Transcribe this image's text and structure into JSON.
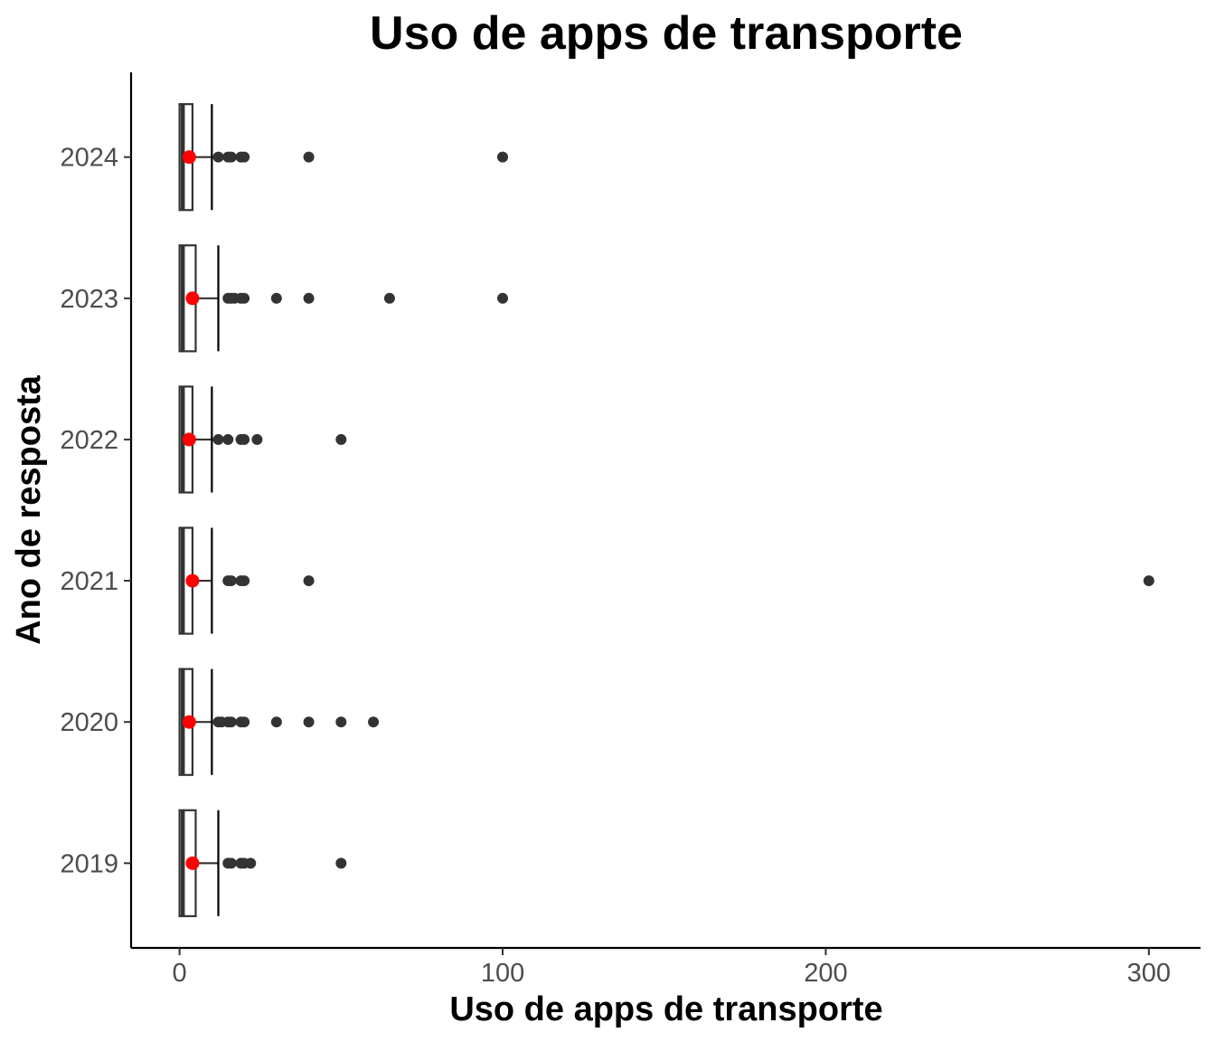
{
  "chart_data": {
    "type": "boxplot",
    "orientation": "horizontal",
    "title": "Uso de apps de transporte",
    "xlabel": "Uso de apps de transporte",
    "ylabel": "Ano de resposta",
    "xlim": [
      -15,
      316
    ],
    "x_ticks": [
      0,
      100,
      200,
      300
    ],
    "x_tick_labels": [
      "0",
      "100",
      "200",
      "300"
    ],
    "categories": [
      "2019",
      "2020",
      "2021",
      "2022",
      "2023",
      "2024"
    ],
    "grid": false,
    "legend": "none",
    "colors": {
      "box": "#333333",
      "outlier": "#333333",
      "mean": "#ff0000"
    },
    "boxes": [
      {
        "category": "2019",
        "lower_whisker": 0,
        "q1": 0,
        "median": 1,
        "q3": 5,
        "upper_whisker": 12,
        "mean": 4,
        "outliers": [
          15,
          16,
          19,
          20,
          22,
          50
        ]
      },
      {
        "category": "2020",
        "lower_whisker": 0,
        "q1": 0,
        "median": 1,
        "q3": 4,
        "upper_whisker": 10,
        "mean": 3,
        "outliers": [
          12,
          13,
          15,
          16,
          19,
          20,
          30,
          40,
          50,
          60
        ]
      },
      {
        "category": "2021",
        "lower_whisker": 0,
        "q1": 0,
        "median": 1,
        "q3": 4,
        "upper_whisker": 10,
        "mean": 4,
        "outliers": [
          15,
          16,
          19,
          20,
          40,
          300
        ]
      },
      {
        "category": "2022",
        "lower_whisker": 0,
        "q1": 0,
        "median": 1,
        "q3": 4,
        "upper_whisker": 10,
        "mean": 3,
        "outliers": [
          12,
          15,
          19,
          20,
          24,
          50
        ]
      },
      {
        "category": "2023",
        "lower_whisker": 0,
        "q1": 0,
        "median": 1,
        "q3": 5,
        "upper_whisker": 12,
        "mean": 4,
        "outliers": [
          15,
          16,
          17,
          19,
          20,
          30,
          40,
          65,
          100
        ]
      },
      {
        "category": "2024",
        "lower_whisker": 0,
        "q1": 0,
        "median": 1,
        "q3": 4,
        "upper_whisker": 10,
        "mean": 3,
        "outliers": [
          12,
          15,
          16,
          19,
          20,
          40,
          100
        ]
      }
    ]
  }
}
